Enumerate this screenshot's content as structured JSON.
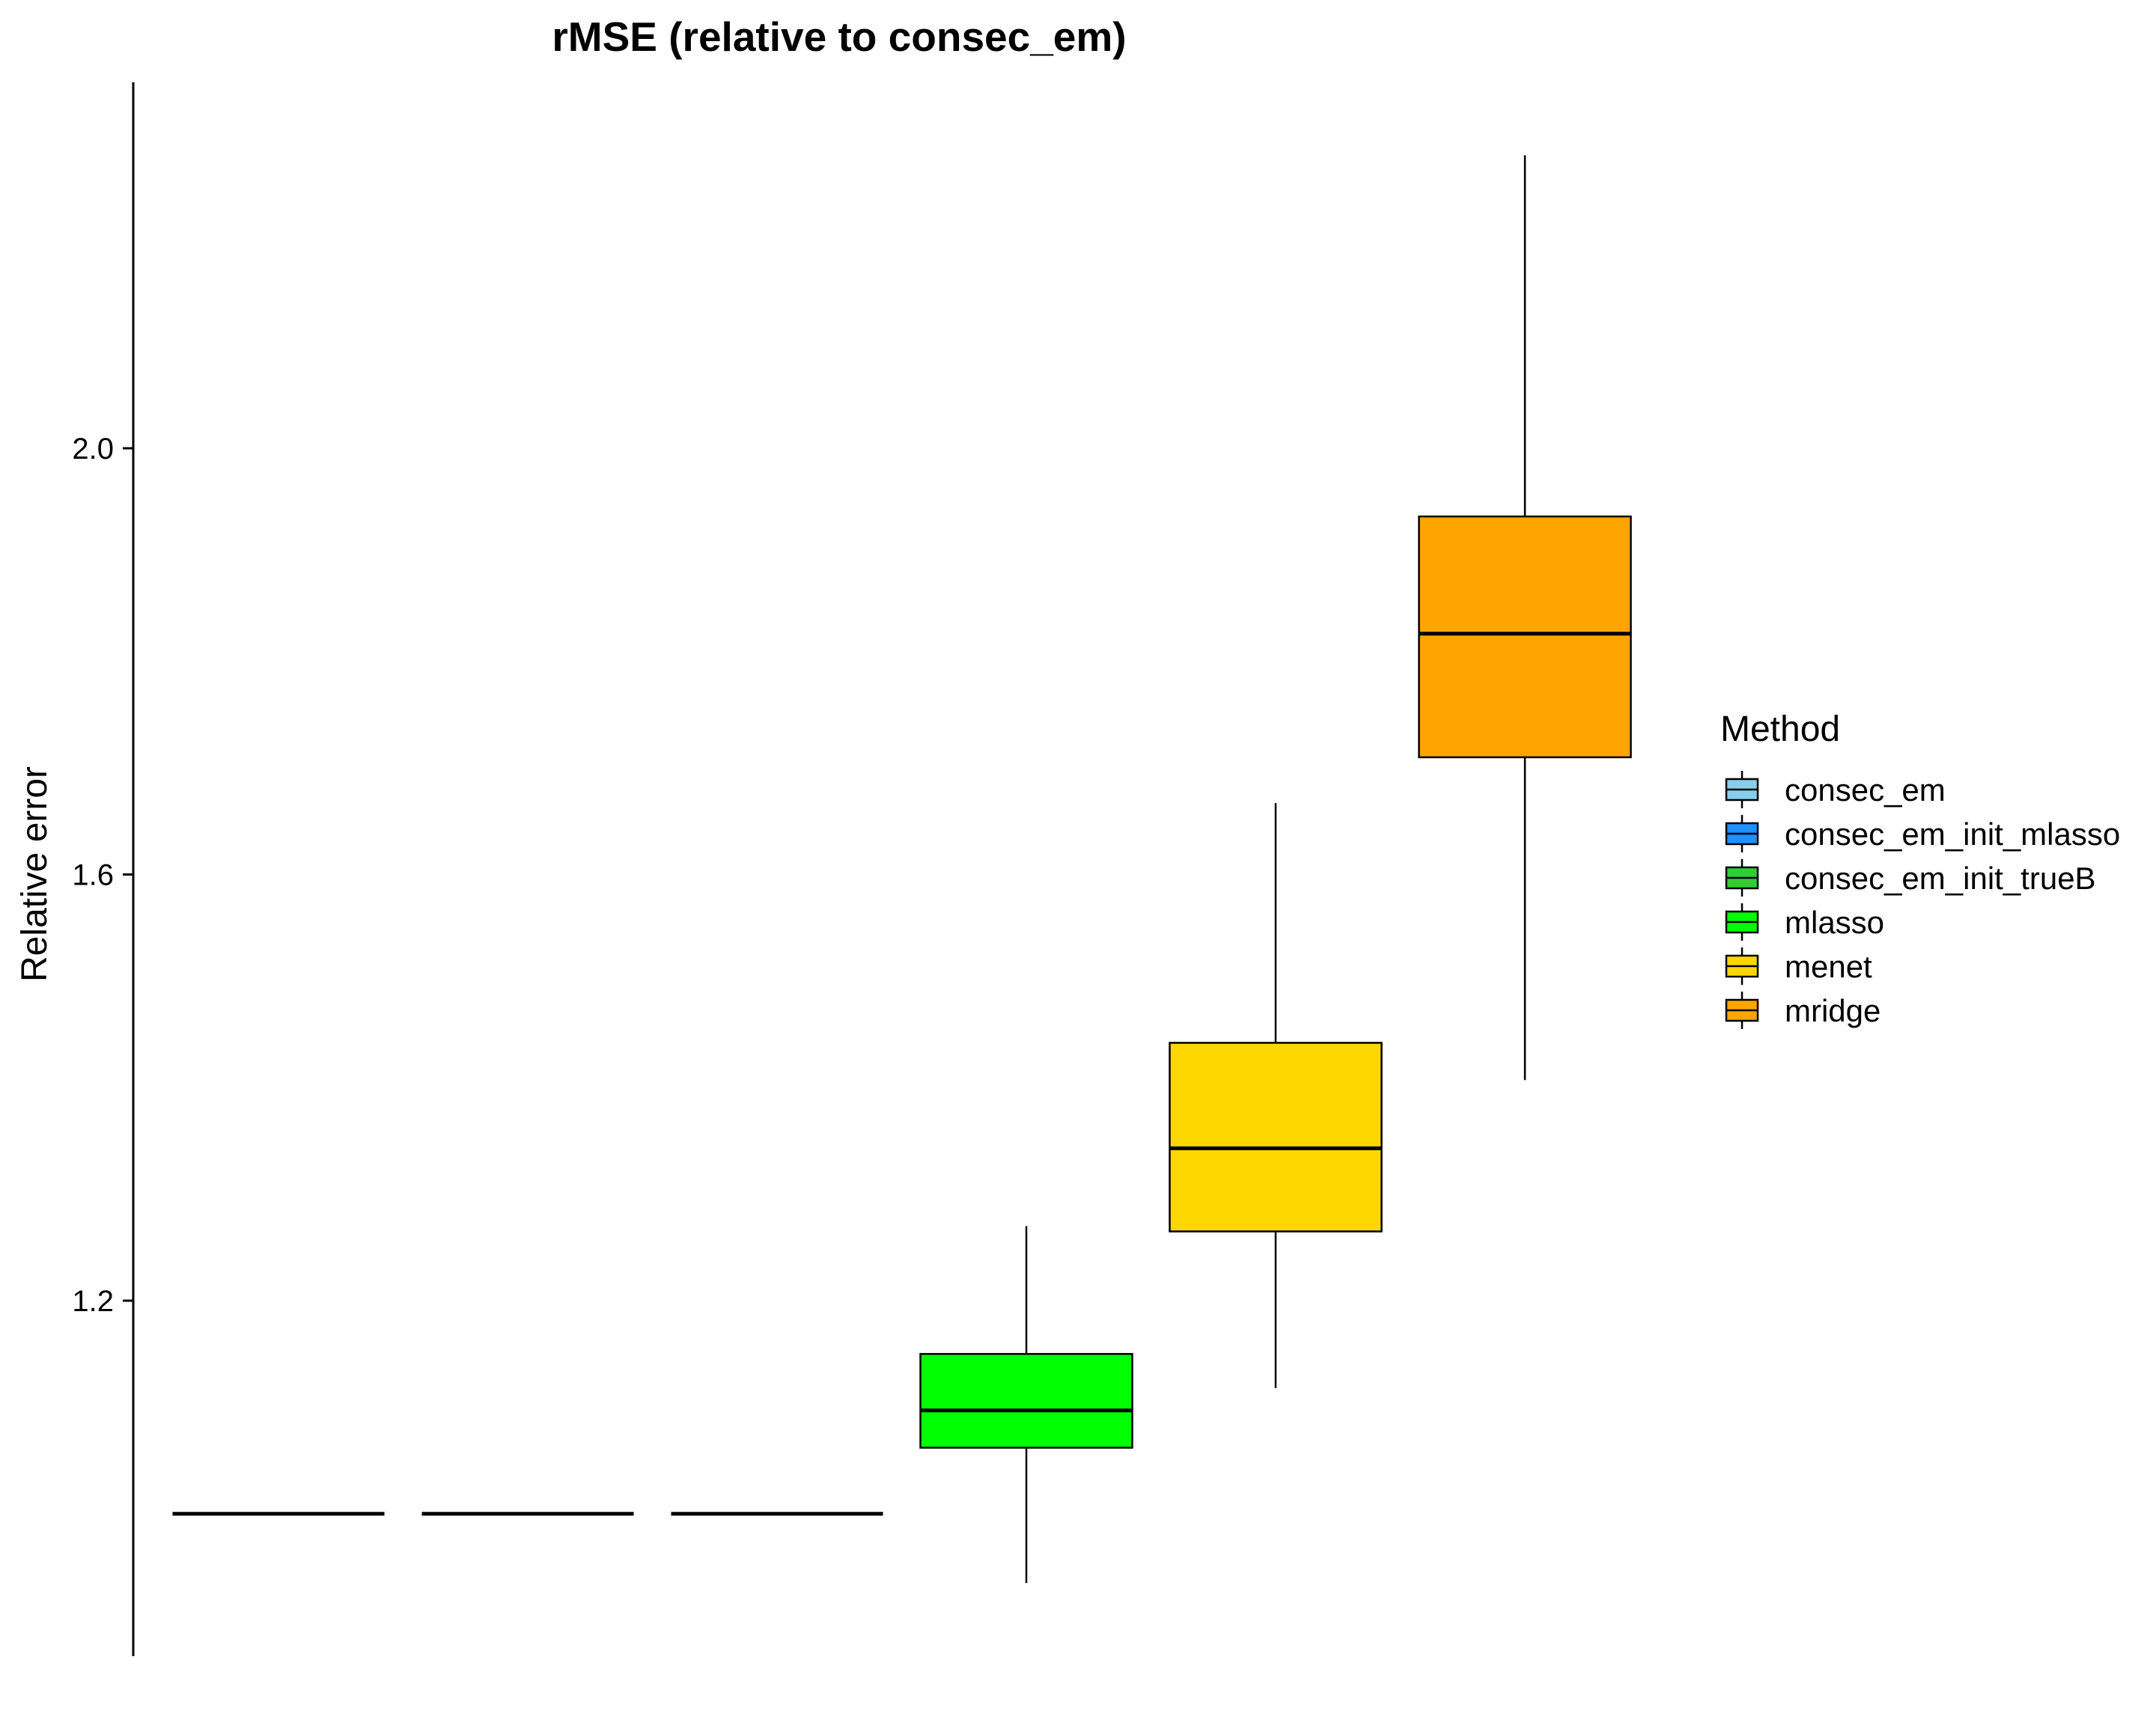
{
  "chart_data": {
    "type": "boxplot",
    "title": "rMSE (relative to consec_em)",
    "xlabel": "",
    "ylabel": "Relative error",
    "ylim": [
      0.88,
      2.36
    ],
    "yticks": [
      1.2,
      1.6,
      2.0
    ],
    "ytick_labels": [
      "1.2",
      "1.6",
      "2.0"
    ],
    "legend": {
      "title": "Method",
      "position": "right"
    },
    "series": [
      {
        "name": "consec_em",
        "color": "#87CEEB",
        "min": 1.0,
        "q1": 1.0,
        "median": 1.0,
        "q3": 1.0,
        "max": 1.0
      },
      {
        "name": "consec_em_init_mlasso",
        "color": "#1E90FF",
        "min": 1.0,
        "q1": 1.0,
        "median": 1.0,
        "q3": 1.0,
        "max": 1.0
      },
      {
        "name": "consec_em_init_trueB",
        "color": "#32CD32",
        "min": 1.0,
        "q1": 1.0,
        "median": 1.0,
        "q3": 1.0,
        "max": 1.0
      },
      {
        "name": "mlasso",
        "color": "#00FF00",
        "min": 0.935,
        "q1": 1.062,
        "median": 1.097,
        "q3": 1.15,
        "max": 1.27
      },
      {
        "name": "menet",
        "color": "#FFD700",
        "min": 1.118,
        "q1": 1.265,
        "median": 1.343,
        "q3": 1.442,
        "max": 1.667
      },
      {
        "name": "mridge",
        "color": "#FFA500",
        "min": 1.407,
        "q1": 1.71,
        "median": 1.826,
        "q3": 1.936,
        "max": 2.275
      }
    ]
  }
}
